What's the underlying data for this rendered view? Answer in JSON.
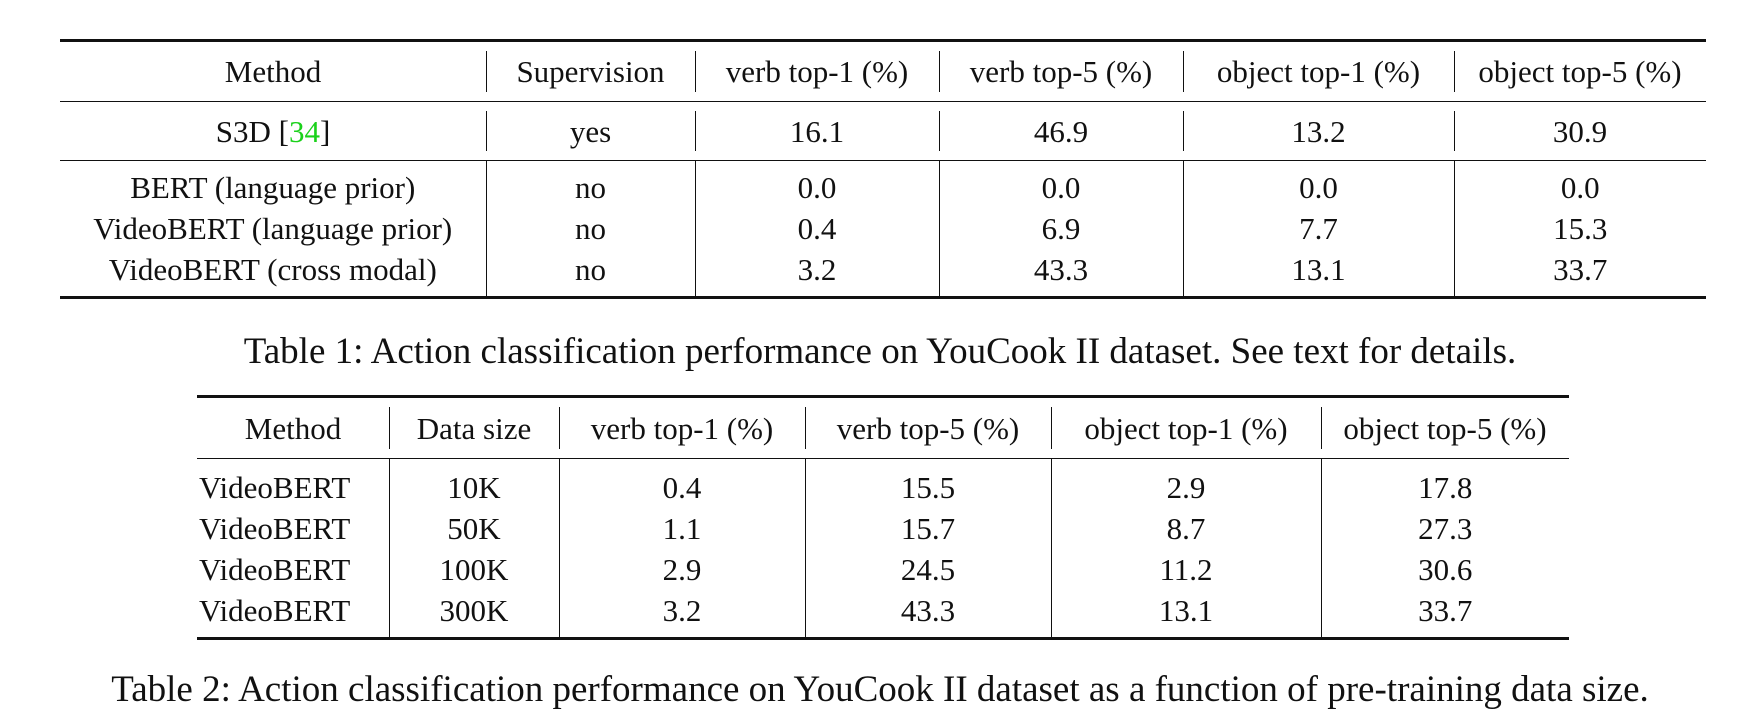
{
  "table1": {
    "headers": [
      "Method",
      "Supervision",
      "verb top-1 (%)",
      "verb top-5 (%)",
      "object top-1 (%)",
      "object top-5 (%)"
    ],
    "s3d_row": {
      "method_text": "S3D [",
      "method_cite": "34",
      "method_close": "]",
      "cells": [
        "yes",
        "16.1",
        "46.9",
        "13.2",
        "30.9"
      ]
    },
    "rows": [
      {
        "method": "BERT (language prior)",
        "cells": [
          "no",
          "0.0",
          "0.0",
          "0.0",
          "0.0"
        ]
      },
      {
        "method": "VideoBERT (language prior)",
        "cells": [
          "no",
          "0.4",
          "6.9",
          "7.7",
          "15.3"
        ]
      },
      {
        "method": "VideoBERT (cross modal)",
        "cells": [
          "no",
          "3.2",
          "43.3",
          "13.1",
          "33.7"
        ]
      }
    ],
    "caption": "Table 1: Action classification performance on YouCook II dataset. See text for details."
  },
  "table2": {
    "headers": [
      "Method",
      "Data size",
      "verb top-1 (%)",
      "verb top-5 (%)",
      "object top-1 (%)",
      "object top-5 (%)"
    ],
    "rows": [
      {
        "cells": [
          "VideoBERT",
          "10K",
          "0.4",
          "15.5",
          "2.9",
          "17.8"
        ]
      },
      {
        "cells": [
          "VideoBERT",
          "50K",
          "1.1",
          "15.7",
          "8.7",
          "27.3"
        ]
      },
      {
        "cells": [
          "VideoBERT",
          "100K",
          "2.9",
          "24.5",
          "11.2",
          "30.6"
        ]
      },
      {
        "cells": [
          "VideoBERT",
          "300K",
          "3.2",
          "43.3",
          "13.1",
          "33.7"
        ]
      }
    ],
    "caption": "Table 2: Action classification performance on YouCook II dataset as a function of pre-training data size."
  },
  "colors": {
    "text": "#111111",
    "citation": "#1bd11b"
  }
}
